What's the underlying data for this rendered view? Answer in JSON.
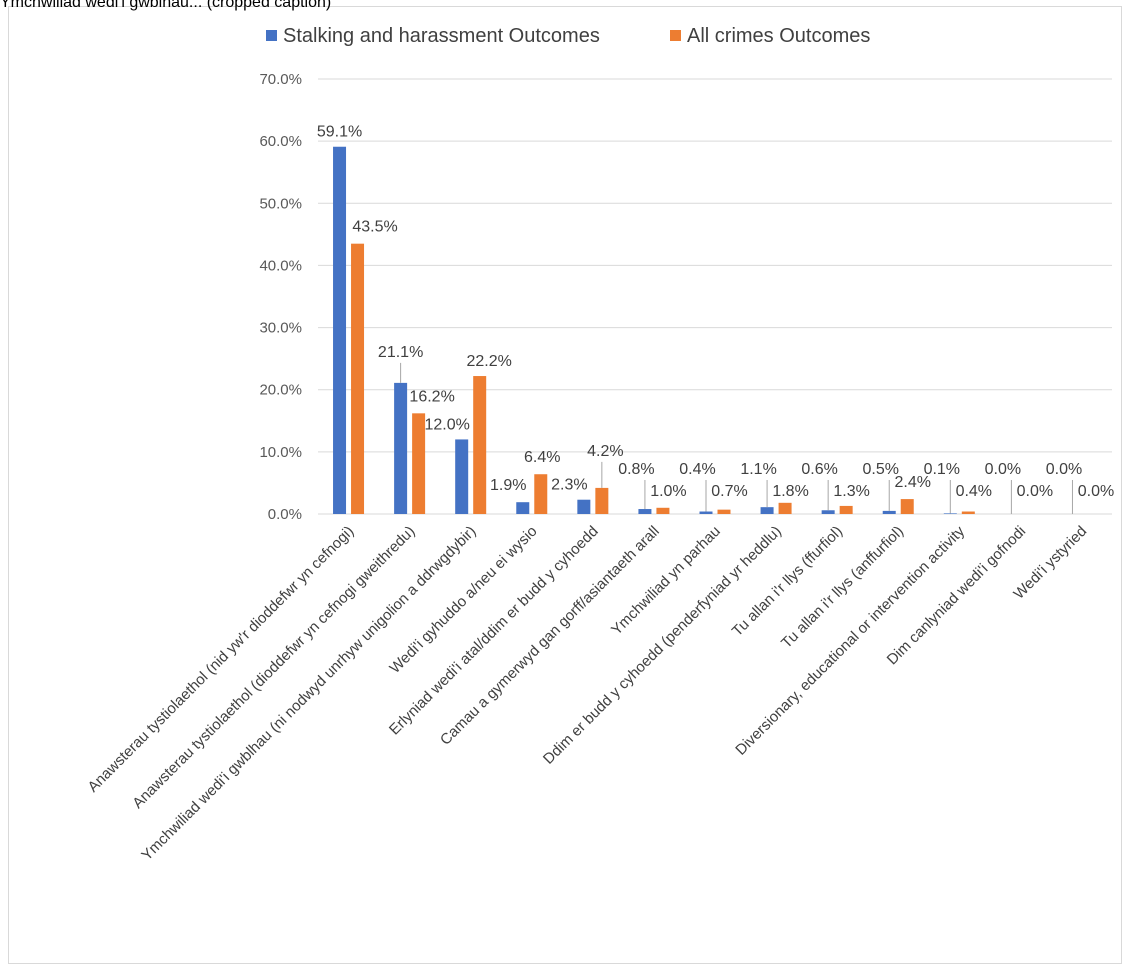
{
  "header_text": "Ymchwiliad wedi'i gwblhau... (cropped caption)",
  "chart_data": {
    "type": "bar",
    "title": "",
    "xlabel": "",
    "ylabel": "",
    "ylim": [
      0,
      70
    ],
    "yticks": [
      "0.0%",
      "10.0%",
      "20.0%",
      "30.0%",
      "40.0%",
      "50.0%",
      "60.0%",
      "70.0%"
    ],
    "grid": true,
    "legend_position": "top",
    "categories": [
      "Anawsterau tystiolaethol (nid yw'r dioddefwr yn cefnogi)",
      "Anawsterau tystiolaethol (dioddefwr yn cefnogi gweithredu)",
      "Ymchwiliad wedi'i gwblhau (ni nodwyd unrhyw unigolion a ddrwgdybir)",
      "Wedi'i gyhuddo a/neu ei wysio",
      "Erlyniad wedi'i atal/ddim er budd y cyhoedd",
      "Camau a gymerwyd gan gorff/asiantaeth arall",
      "Ymchwiliad yn parhau",
      "Ddim er budd y cyhoedd (penderfyniad yr heddlu)",
      "Tu allan i'r llys (ffurfiol)",
      "Tu allan i'r llys (anffurfiol)",
      "Diversionary, educational or intervention activity",
      "Dim canlyniad wedi'i gofnodi",
      "Wedi'i ystyried"
    ],
    "series": [
      {
        "name": "Stalking and harassment Outcomes",
        "color": "#4472c4",
        "values": [
          59.1,
          21.1,
          12.0,
          1.9,
          2.3,
          0.8,
          0.4,
          1.1,
          0.6,
          0.5,
          0.1,
          0.0,
          0.0
        ],
        "labels": [
          "59.1%",
          "21.1%",
          "12.0%",
          "1.9%",
          "2.3%",
          "0.8%",
          "0.4%",
          "1.1%",
          "0.6%",
          "0.5%",
          "0.1%",
          "0.0%",
          "0.0%"
        ]
      },
      {
        "name": "All crimes Outcomes",
        "color": "#ed7d31",
        "values": [
          43.5,
          16.2,
          22.2,
          6.4,
          4.2,
          1.0,
          0.7,
          1.8,
          1.3,
          2.4,
          0.4,
          0.0,
          0.0
        ],
        "labels": [
          "43.5%",
          "16.2%",
          "22.2%",
          "6.4%",
          "4.2%",
          "1.0%",
          "0.7%",
          "1.8%",
          "1.3%",
          "2.4%",
          "0.4%",
          "0.0%",
          "0.0%"
        ]
      }
    ]
  }
}
